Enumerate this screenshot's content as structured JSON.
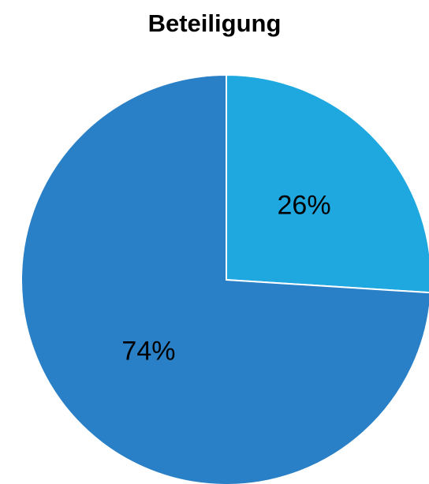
{
  "chart_data": {
    "type": "pie",
    "title": "Beteiligung",
    "slices": [
      {
        "value": 26,
        "label": "26%",
        "color": "#1FA8E0"
      },
      {
        "value": 74,
        "label": "74%",
        "color": "#2A80C6"
      }
    ],
    "legend": "none",
    "start_angle": "12 o'clock",
    "direction": "clockwise"
  }
}
